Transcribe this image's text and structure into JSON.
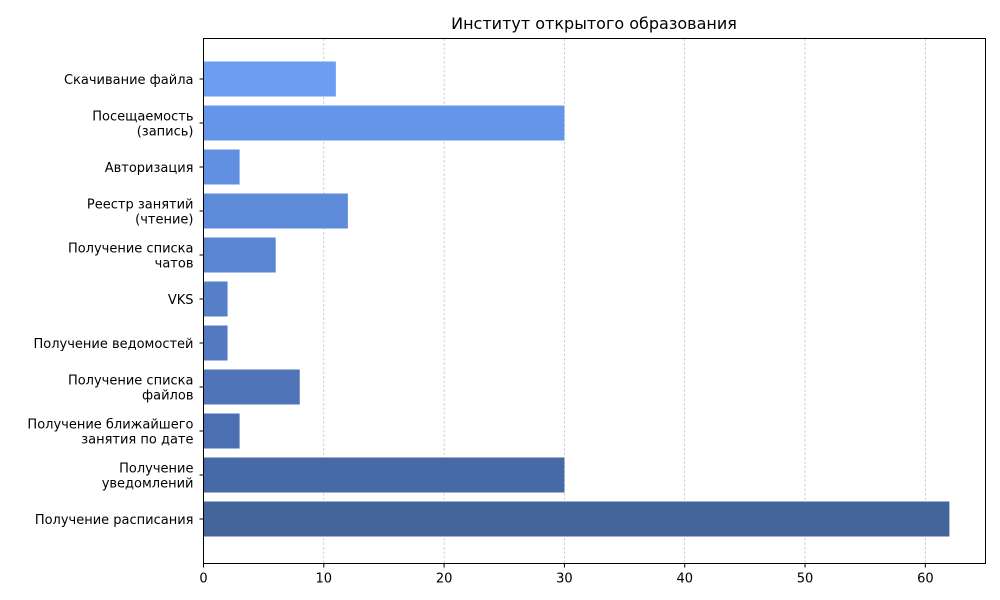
{
  "chart_data": {
    "type": "bar",
    "orientation": "horizontal",
    "title": "Институт открытого образования",
    "xlabel": "",
    "ylabel": "",
    "xlim": [
      0,
      65
    ],
    "xticks": [
      0,
      10,
      20,
      30,
      40,
      50,
      60
    ],
    "grid": "x-dashed",
    "categories": [
      [
        "Скачивание файла"
      ],
      [
        "Посещаемость",
        "(запись)"
      ],
      [
        "Авторизация"
      ],
      [
        "Реестр занятий",
        "(чтение)"
      ],
      [
        "Получение списка",
        "чатов"
      ],
      [
        "VKS"
      ],
      [
        "Получение ведомостей"
      ],
      [
        "Получение списка",
        "файлов"
      ],
      [
        "Получение ближайшего",
        "занятия по дате"
      ],
      [
        "Получение",
        "уведомлений"
      ],
      [
        "Получение расписания"
      ]
    ],
    "values": [
      11,
      30,
      3,
      12,
      6,
      2,
      2,
      8,
      3,
      30,
      62
    ],
    "colors": [
      "#6b9df2",
      "#6595e8",
      "#6190e2",
      "#5d8ad9",
      "#5a85d1",
      "#567fc8",
      "#537ac0",
      "#4f75b8",
      "#4b6fb0",
      "#4769a6",
      "#44649c"
    ]
  }
}
